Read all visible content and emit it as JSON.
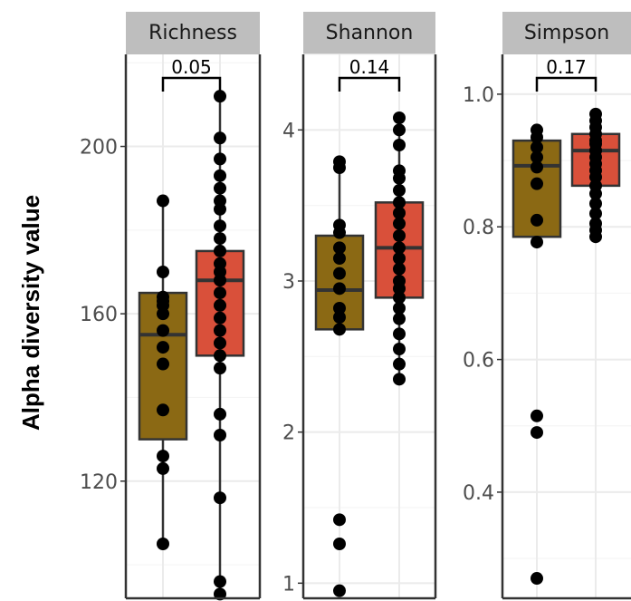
{
  "y_axis_label": "Alpha diversity value",
  "colors": {
    "group1_fill": "#8B6914",
    "group2_fill": "#D9503A",
    "box_stroke": "#333333",
    "strip_bg": "#BEBEBE",
    "grid_major": "#EBEBEB",
    "grid_minor": "#F5F5F5",
    "points": "#000000"
  },
  "chart_data": [
    {
      "type": "box",
      "panel": "Richness",
      "ylim": [
        92,
        222
      ],
      "yticks": [
        120,
        160,
        200
      ],
      "tick_labels": [
        "120",
        "160",
        "200"
      ],
      "comparison_p": "0.05",
      "groups": [
        {
          "whisker_low": 105,
          "q1": 130,
          "median": 155,
          "q3": 165,
          "whisker_high": 187,
          "points": [
            105,
            123,
            126,
            137,
            148,
            152,
            156,
            160,
            162,
            163,
            164,
            170,
            187
          ]
        },
        {
          "whisker_low": 93,
          "q1": 150,
          "median": 168,
          "q3": 175,
          "whisker_high": 212,
          "points": [
            93,
            96,
            116,
            131,
            136,
            147,
            150,
            153,
            156,
            159,
            162,
            165,
            168,
            170,
            172,
            175,
            178,
            181,
            185,
            187,
            190,
            193,
            197,
            202,
            212
          ]
        }
      ]
    },
    {
      "type": "box",
      "panel": "Shannon",
      "ylim": [
        0.9,
        4.5
      ],
      "yticks": [
        1,
        2,
        3,
        4
      ],
      "tick_labels": [
        "1",
        "2",
        "3",
        "4"
      ],
      "comparison_p": "0.14",
      "groups": [
        {
          "whisker_low": 2.67,
          "q1": 2.68,
          "median": 2.94,
          "q3": 3.3,
          "whisker_high": 3.79,
          "points": [
            0.95,
            1.26,
            1.42,
            2.68,
            2.76,
            2.82,
            2.95,
            3.05,
            3.15,
            3.22,
            3.32,
            3.37,
            3.75,
            3.79
          ]
        },
        {
          "whisker_low": 2.35,
          "q1": 2.89,
          "median": 3.22,
          "q3": 3.52,
          "whisker_high": 4.08,
          "points": [
            2.35,
            2.45,
            2.55,
            2.65,
            2.75,
            2.82,
            2.89,
            2.95,
            3.0,
            3.08,
            3.15,
            3.22,
            3.3,
            3.38,
            3.45,
            3.52,
            3.6,
            3.68,
            3.73,
            3.9,
            4.0,
            4.08
          ]
        }
      ]
    },
    {
      "type": "box",
      "panel": "Simpson",
      "ylim": [
        0.24,
        1.06
      ],
      "yticks": [
        0.4,
        0.6,
        0.8,
        1.0
      ],
      "tick_labels": [
        "0.4",
        "0.6",
        "0.8",
        "1.0"
      ],
      "comparison_p": "0.17",
      "groups": [
        {
          "whisker_low": 0.777,
          "q1": 0.785,
          "median": 0.892,
          "q3": 0.93,
          "whisker_high": 0.946,
          "points": [
            0.27,
            0.49,
            0.515,
            0.777,
            0.81,
            0.865,
            0.89,
            0.905,
            0.92,
            0.935,
            0.946
          ]
        },
        {
          "whisker_low": 0.785,
          "q1": 0.862,
          "median": 0.915,
          "q3": 0.94,
          "whisker_high": 0.97,
          "points": [
            0.785,
            0.795,
            0.805,
            0.82,
            0.835,
            0.85,
            0.862,
            0.875,
            0.885,
            0.895,
            0.905,
            0.915,
            0.925,
            0.93,
            0.94,
            0.95,
            0.96,
            0.97
          ]
        }
      ]
    }
  ]
}
